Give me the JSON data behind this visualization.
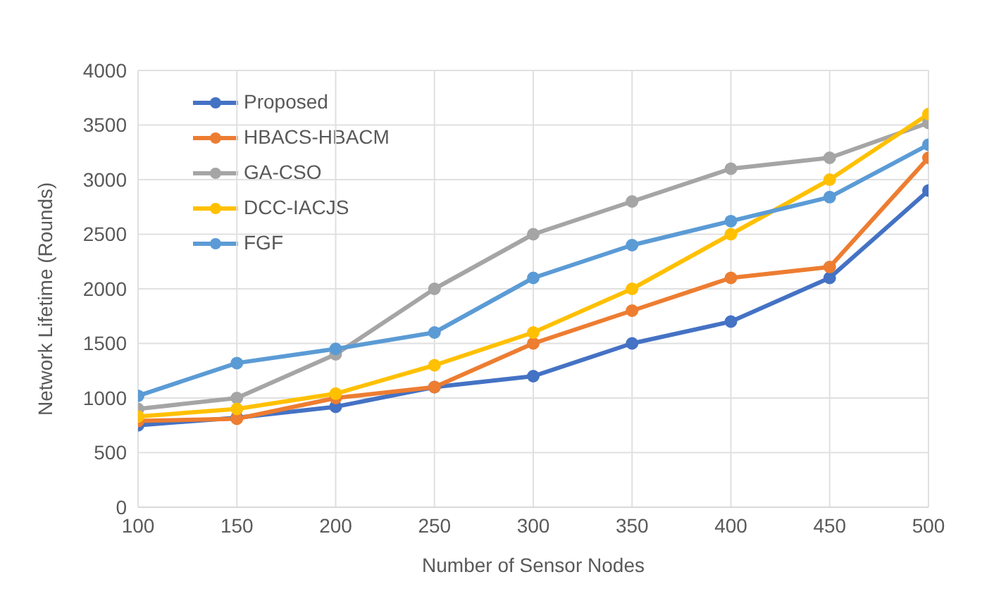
{
  "chart_data": {
    "type": "line",
    "xlabel": "Number of Sensor Nodes",
    "ylabel": "Network Lifetime (Rounds)",
    "x": [
      100,
      150,
      200,
      250,
      300,
      350,
      400,
      450,
      500
    ],
    "series": [
      {
        "name": "Proposed",
        "color": "#4472c4",
        "values": [
          750,
          820,
          920,
          1100,
          1200,
          1500,
          1700,
          2100,
          2900
        ]
      },
      {
        "name": "HBACS-HBACM",
        "color": "#ed7d31",
        "values": [
          790,
          810,
          1000,
          1100,
          1500,
          1800,
          2100,
          2200,
          3200
        ]
      },
      {
        "name": "GA-CSO",
        "color": "#a5a5a5",
        "values": [
          900,
          1000,
          1400,
          2000,
          2500,
          2800,
          3100,
          3200,
          3520
        ]
      },
      {
        "name": "DCC-IACJS",
        "color": "#ffc000",
        "values": [
          830,
          900,
          1040,
          1300,
          1600,
          2000,
          2500,
          3000,
          3600
        ]
      },
      {
        "name": "FGF",
        "color": "#5b9bd5",
        "values": [
          1020,
          1320,
          1450,
          1600,
          2100,
          2400,
          2620,
          2840,
          3320
        ]
      }
    ],
    "xlim": [
      100,
      500
    ],
    "xticks": [
      100,
      150,
      200,
      250,
      300,
      350,
      400,
      450,
      500
    ],
    "ylim": [
      0,
      4000
    ],
    "yticks": [
      0,
      500,
      1000,
      1500,
      2000,
      2500,
      3000,
      3500,
      4000
    ],
    "grid": true,
    "legend": "top left",
    "marker": "circle",
    "line_style": "solid"
  }
}
